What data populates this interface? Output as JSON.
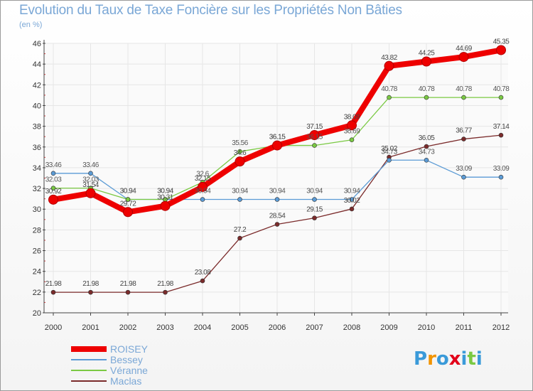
{
  "chart_data": {
    "type": "line",
    "title": "Evolution du Taux de Taxe Foncière sur les Propriétés Non Bâties",
    "ylabel": "(en %)",
    "xlabel": "",
    "x": [
      "2000",
      "2001",
      "2002",
      "2003",
      "2004",
      "2005",
      "2006",
      "2007",
      "2008",
      "2009",
      "2010",
      "2011",
      "2012"
    ],
    "yticks": [
      "20",
      "22",
      "24",
      "26",
      "28",
      "30",
      "32",
      "34",
      "36",
      "38",
      "40",
      "42",
      "44",
      "46"
    ],
    "ylim": [
      20,
      46
    ],
    "grid": true,
    "series": [
      {
        "name": "ROISEY",
        "color": "#ee0000",
        "values": [
          30.92,
          31.54,
          29.72,
          30.31,
          32.15,
          34.6,
          36.15,
          37.15,
          38.09,
          43.82,
          44.25,
          44.69,
          45.35
        ],
        "labels": [
          "30.92",
          "31.54",
          "29.72",
          "30.31",
          "32.15",
          "34.6",
          "36.15",
          "37.15",
          "38.09",
          "43.82",
          "44.25",
          "44.69",
          "45.35"
        ]
      },
      {
        "name": "Bessey",
        "color": "#5b9bd5",
        "values": [
          33.46,
          33.46,
          30.94,
          30.94,
          30.94,
          30.94,
          30.94,
          30.94,
          30.94,
          34.73,
          34.73,
          33.09,
          33.09
        ],
        "labels": [
          "33.46",
          "33.46",
          "30.94",
          "30.94",
          "30.94",
          "30.94",
          "30.94",
          "30.94",
          "30.94",
          "34.73",
          "34.73",
          "33.09",
          "33.09"
        ]
      },
      {
        "name": "Véranne",
        "color": "#7ac943",
        "values": [
          32.03,
          32.03,
          30.94,
          30.94,
          32.6,
          35.56,
          36.15,
          36.15,
          36.69,
          40.78,
          40.78,
          40.78,
          40.78
        ],
        "labels": [
          "32.03",
          "32.03",
          "30.94",
          "30.94",
          "32.6",
          "35.56",
          "36.15",
          "36.15",
          "36.69",
          "40.78",
          "40.78",
          "40.78",
          "40.78"
        ]
      },
      {
        "name": "Maclas",
        "color": "#7b2b2b",
        "values": [
          21.98,
          21.98,
          21.98,
          21.98,
          23.08,
          27.2,
          28.54,
          29.15,
          30.02,
          35.02,
          36.05,
          36.77,
          37.14
        ],
        "labels": [
          "21.98",
          "21.98",
          "21.98",
          "21.98",
          "23.08",
          "27.2",
          "28.54",
          "29.15",
          "30.02",
          "35.02",
          "36.05",
          "36.77",
          "37.14"
        ]
      }
    ],
    "legend_position": "bottom-left"
  },
  "branding": {
    "logo_letters": [
      "P",
      "r",
      "o",
      "x",
      "i",
      "t",
      "i"
    ],
    "logo_colors": [
      "#3a9ad9",
      "#f29400",
      "#3a9ad9",
      "#e2001a",
      "#3a9ad9",
      "#7ac943",
      "#3a9ad9"
    ]
  }
}
